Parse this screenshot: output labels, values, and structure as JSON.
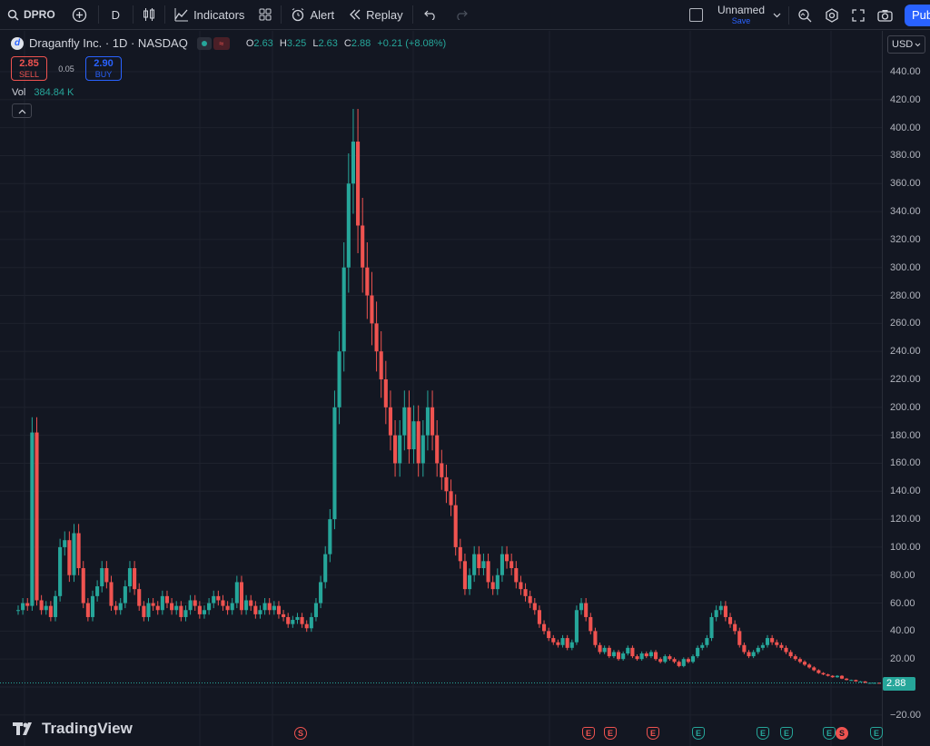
{
  "toolbar": {
    "symbol": "DPRO",
    "interval": "D",
    "indicators_label": "Indicators",
    "alert_label": "Alert",
    "replay_label": "Replay",
    "layout_name": "Unnamed",
    "save_label": "Save",
    "publish_label": "Publish"
  },
  "legend": {
    "title": "Draganfly Inc. · 1D · NASDAQ",
    "o_key": "O",
    "o_val": "2.63",
    "h_key": "H",
    "h_val": "3.25",
    "l_key": "L",
    "l_val": "2.63",
    "c_key": "C",
    "c_val": "2.88",
    "change": "+0.21 (+8.08%)",
    "sell_price": "2.85",
    "sell_label": "SELL",
    "spread": "0.05",
    "buy_price": "2.90",
    "buy_label": "BUY",
    "vol_key": "Vol",
    "vol_val": "384.84 K"
  },
  "price_axis": {
    "currency": "USD",
    "ticks": [
      "440.00",
      "420.00",
      "400.00",
      "380.00",
      "360.00",
      "340.00",
      "320.00",
      "300.00",
      "280.00",
      "260.00",
      "240.00",
      "220.00",
      "200.00",
      "180.00",
      "160.00",
      "140.00",
      "120.00",
      "100.00",
      "80.00",
      "60.00",
      "40.00",
      "20.00",
      "0.00",
      "−20.00"
    ],
    "last_price": "2.88"
  },
  "watermark": "TradingView",
  "events": [
    {
      "kind": "split",
      "label": "S"
    },
    {
      "kind": "earn-red",
      "label": "E"
    },
    {
      "kind": "earn-red",
      "label": "E"
    },
    {
      "kind": "earn-red",
      "label": "E"
    },
    {
      "kind": "earn-green",
      "label": "E"
    },
    {
      "kind": "earn-green",
      "label": "E"
    },
    {
      "kind": "earn-green",
      "label": "E"
    },
    {
      "kind": "earn-green",
      "label": "E"
    },
    {
      "kind": "split-fill",
      "label": "S"
    },
    {
      "kind": "earn-green",
      "label": "E"
    }
  ],
  "colors": {
    "up": "#26a69a",
    "down": "#ef5350",
    "background": "#131722",
    "grid": "#1e222d",
    "accent": "#2962ff"
  },
  "chart_data": {
    "type": "line",
    "ylim": [
      -20,
      440
    ],
    "series": [
      {
        "values": [
          55,
          60,
          58,
          182,
          62,
          55,
          58,
          50,
          65,
          100,
          105,
          80,
          110,
          85,
          60,
          50,
          65,
          72,
          85,
          75,
          58,
          55,
          60,
          72,
          85,
          70,
          58,
          50,
          60,
          58,
          55,
          65,
          60,
          55,
          58,
          50,
          55,
          62,
          58,
          52,
          55,
          60,
          65,
          62,
          58,
          55,
          60,
          75,
          55,
          62,
          58,
          52,
          55,
          60,
          55,
          58,
          52,
          50,
          45,
          48,
          50,
          45,
          42,
          50,
          60,
          75,
          95,
          120,
          200,
          240,
          300,
          360,
          390,
          330,
          300,
          280,
          260,
          240,
          220,
          200,
          180,
          160,
          180,
          200,
          170,
          190,
          160,
          180,
          200,
          180,
          160,
          150,
          140,
          130,
          100,
          90,
          70,
          80,
          95,
          85,
          90,
          75,
          70,
          80,
          95,
          90,
          85,
          75,
          70,
          65,
          60,
          55,
          45,
          40,
          35,
          32,
          30,
          35,
          28,
          32,
          55,
          60,
          50,
          40,
          30,
          25,
          28,
          22,
          25,
          20,
          24,
          28,
          22,
          20,
          24,
          22,
          25,
          20,
          18,
          22,
          20,
          18,
          15,
          20,
          18,
          22,
          28,
          30,
          35,
          50,
          55,
          58,
          50,
          45,
          40,
          30,
          25,
          22,
          25,
          28,
          30,
          35,
          32,
          30,
          28,
          25,
          22,
          20,
          18,
          16,
          14,
          12,
          10,
          9,
          8,
          7,
          8,
          6,
          5,
          5,
          4,
          4,
          3,
          3,
          3,
          2.88
        ]
      }
    ]
  }
}
